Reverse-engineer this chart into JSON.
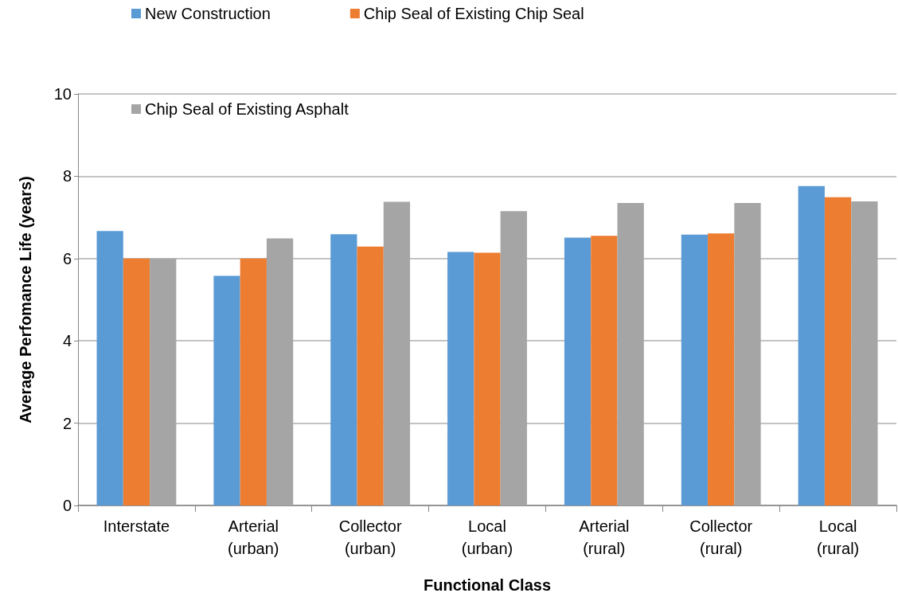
{
  "chart_data": {
    "type": "bar",
    "xlabel": "Functional Class",
    "ylabel": "Average Perfomance Life (years)",
    "categories": [
      "Interstate",
      "Arterial\n(urban)",
      "Collector\n(urban)",
      "Local\n(urban)",
      "Arterial\n(rural)",
      "Collector\n(rural)",
      "Local\n(rural)"
    ],
    "series": [
      {
        "name": "New Construction",
        "color": "#5b9bd5",
        "values": [
          6.67,
          5.58,
          6.59,
          6.16,
          6.51,
          6.58,
          7.76
        ]
      },
      {
        "name": "Chip Seal of Existing Chip Seal",
        "color": "#ed7d31",
        "values": [
          6.0,
          6.0,
          6.29,
          6.14,
          6.55,
          6.61,
          7.49
        ]
      },
      {
        "name": "Chip Seal of Existing Asphalt",
        "color": "#a5a5a5",
        "values": [
          6.0,
          6.49,
          7.38,
          7.15,
          7.35,
          7.35,
          7.39
        ]
      }
    ],
    "ylim": [
      0,
      10
    ],
    "yticks": [
      0,
      2,
      4,
      6,
      8,
      10
    ],
    "grid": "y",
    "legend": "top"
  }
}
